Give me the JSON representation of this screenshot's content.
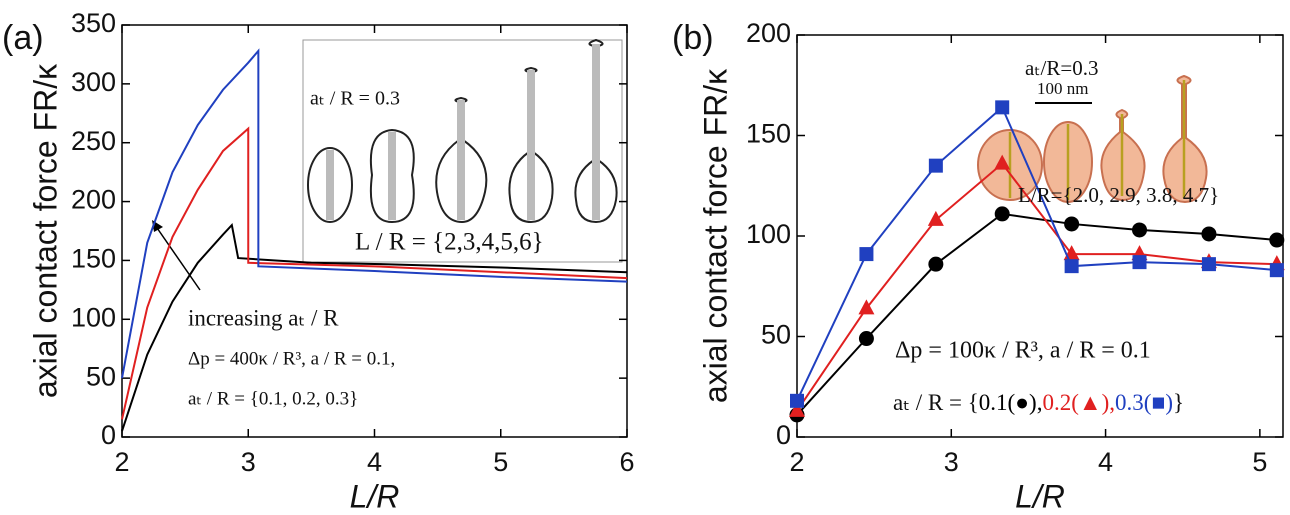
{
  "chart_data": [
    {
      "type": "line",
      "panel_label": "(a)",
      "y_label": "axial contact force FR/κ",
      "x_label": "L/R",
      "xlim": [
        2,
        6
      ],
      "xticks": [
        2,
        3,
        4,
        5,
        6
      ],
      "ylim": [
        0,
        350
      ],
      "yticks": [
        0,
        50,
        100,
        150,
        200,
        250,
        300,
        350
      ],
      "series": [
        {
          "color": "#000000",
          "x": [
            2.0,
            2.2,
            2.4,
            2.6,
            2.8,
            2.87,
            2.92,
            3.5,
            4,
            5,
            6
          ],
          "values": [
            5,
            70,
            115,
            148,
            172,
            180,
            152,
            148,
            147,
            144,
            140
          ]
        },
        {
          "color": "#e02020",
          "x": [
            2.0,
            2.2,
            2.4,
            2.6,
            2.8,
            3.0,
            3.0,
            4,
            5,
            6
          ],
          "values": [
            15,
            110,
            170,
            210,
            243,
            262,
            148,
            145,
            140,
            135
          ]
        },
        {
          "color": "#2040c0",
          "x": [
            2.0,
            2.2,
            2.4,
            2.6,
            2.8,
            3.0,
            3.08,
            3.08,
            4,
            5,
            6
          ],
          "values": [
            50,
            165,
            225,
            265,
            295,
            318,
            328,
            145,
            141,
            136,
            132
          ]
        }
      ],
      "annotations": [
        "aₜ / R = 0.3",
        "L / R = {2,3,4,5,6}",
        "increasing aₜ / R",
        "Δp = 400κ / R³, a / R = 0.1,",
        "aₜ / R = {0.1, 0.2, 0.3}"
      ]
    },
    {
      "type": "line",
      "panel_label": "(b)",
      "y_label": "axial contact force FR/κ",
      "x_label": "L/R",
      "xlim": [
        2,
        5.15
      ],
      "xticks": [
        2,
        3,
        4,
        5
      ],
      "ylim": [
        0,
        200
      ],
      "yticks": [
        0,
        50,
        100,
        150,
        200
      ],
      "x": [
        2.0,
        2.45,
        2.9,
        3.33,
        3.78,
        4.22,
        4.67,
        5.11
      ],
      "series": [
        {
          "name": "0.1(●),",
          "color": "#000000",
          "marker": "circle",
          "values": [
            11,
            49,
            86,
            111,
            106,
            103,
            101,
            98
          ]
        },
        {
          "name": "0.2(▲),",
          "color": "#e02020",
          "marker": "triangle",
          "values": [
            13,
            64,
            108,
            136,
            91,
            91,
            87,
            86
          ]
        },
        {
          "name": "0.3(■)",
          "color": "#2040c0",
          "marker": "square",
          "values": [
            18,
            91,
            135,
            164,
            85,
            87,
            86,
            83
          ]
        }
      ],
      "legend_prefix": "aₜ / R = {",
      "legend_suffix": "}",
      "annotations": [
        "aₜ/R=0.3",
        "100 nm",
        "L/R={2.0, 2.9, 3.8, 4.7}",
        "Δp = 100κ / R³, a / R = 0.1"
      ]
    }
  ]
}
